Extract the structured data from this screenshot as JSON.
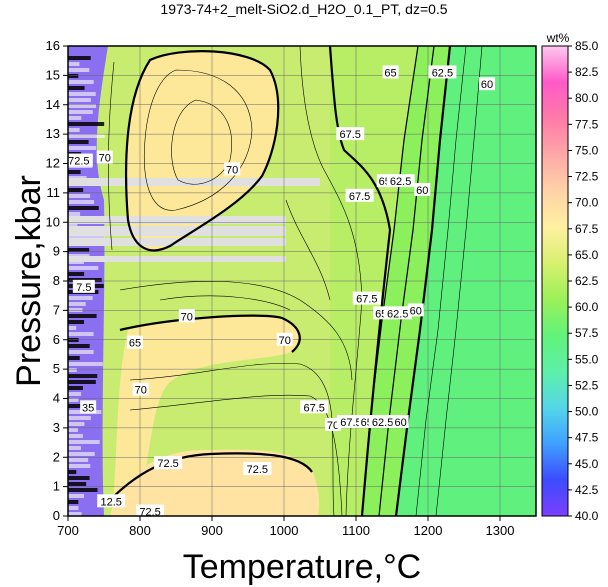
{
  "chart_data": {
    "type": "heatmap",
    "title": "1973-74+2_melt-SiO2.d_H2O_0.1_PT, dz=0.5",
    "xlabel": "Temperature,°C",
    "ylabel": "Pressure,kbar",
    "xlim": [
      700,
      1350
    ],
    "ylim": [
      0,
      16
    ],
    "x_ticks": [
      "700",
      "800",
      "900",
      "1000",
      "1100",
      "1200",
      "1300"
    ],
    "y_ticks": [
      "0",
      "1",
      "2",
      "3",
      "4",
      "5",
      "6",
      "7",
      "8",
      "9",
      "10",
      "11",
      "12",
      "13",
      "14",
      "15",
      "16"
    ],
    "grid": true,
    "colorbar": {
      "label": "wt%",
      "range": [
        40,
        85
      ],
      "ticks": [
        "40.0",
        "42.5",
        "45.0",
        "47.5",
        "50.0",
        "52.5",
        "55.0",
        "57.5",
        "60.0",
        "62.5",
        "65.0",
        "67.5",
        "70.0",
        "72.5",
        "75.0",
        "77.5",
        "80.0",
        "82.5",
        "85.0"
      ],
      "colors": [
        "#7b3fff",
        "#3c4cff",
        "#3fa0ff",
        "#55d6e8",
        "#5ef0a8",
        "#62f27a",
        "#9cf058",
        "#d8f070",
        "#fff0a0",
        "#ffd2a8",
        "#ffa8a8",
        "#ff7aa8",
        "#ff5ac8",
        "#ffc8f0"
      ]
    },
    "contour_labels": [
      {
        "text": "70",
        "t": 928,
        "p": 11.8
      },
      {
        "text": "67.5",
        "t": 1092,
        "p": 13.0
      },
      {
        "text": "65",
        "t": 1148,
        "p": 15.1
      },
      {
        "text": "62.5",
        "t": 1220,
        "p": 15.1
      },
      {
        "text": "60",
        "t": 1282,
        "p": 14.7
      },
      {
        "text": "67.5",
        "t": 1105,
        "p": 10.9
      },
      {
        "text": "65",
        "t": 1140,
        "p": 11.4
      },
      {
        "text": "62.5",
        "t": 1162,
        "p": 11.4
      },
      {
        "text": "60",
        "t": 1192,
        "p": 11.1
      },
      {
        "text": "67.5",
        "t": 1115,
        "p": 7.4
      },
      {
        "text": "65",
        "t": 1135,
        "p": 6.9
      },
      {
        "text": "62.5",
        "t": 1158,
        "p": 6.9
      },
      {
        "text": "60",
        "t": 1183,
        "p": 7.0
      },
      {
        "text": "70",
        "t": 865,
        "p": 6.8
      },
      {
        "text": "70",
        "t": 1001,
        "p": 6.0
      },
      {
        "text": "67.5",
        "t": 1042,
        "p": 3.7
      },
      {
        "text": "70",
        "t": 1068,
        "p": 3.1
      },
      {
        "text": "67.5",
        "t": 1093,
        "p": 3.2
      },
      {
        "text": "65",
        "t": 1115,
        "p": 3.2
      },
      {
        "text": "62.5",
        "t": 1137,
        "p": 3.2
      },
      {
        "text": "60",
        "t": 1162,
        "p": 3.2
      },
      {
        "text": "72.5",
        "t": 839,
        "p": 1.8
      },
      {
        "text": "72.5",
        "t": 963,
        "p": 1.6
      },
      {
        "text": "72.5",
        "t": 814,
        "p": 0.15
      },
      {
        "text": "72.5",
        "t": 715,
        "p": 12.1
      },
      {
        "text": "70",
        "t": 751,
        "p": 12.2
      },
      {
        "text": "7.5",
        "t": 722,
        "p": 7.8
      },
      {
        "text": "35",
        "t": 728,
        "p": 3.7
      },
      {
        "text": "65",
        "t": 793,
        "p": 5.9
      },
      {
        "text": "70",
        "t": 801,
        "p": 4.3
      },
      {
        "text": "12.5",
        "t": 760,
        "p": 0.5
      }
    ]
  }
}
